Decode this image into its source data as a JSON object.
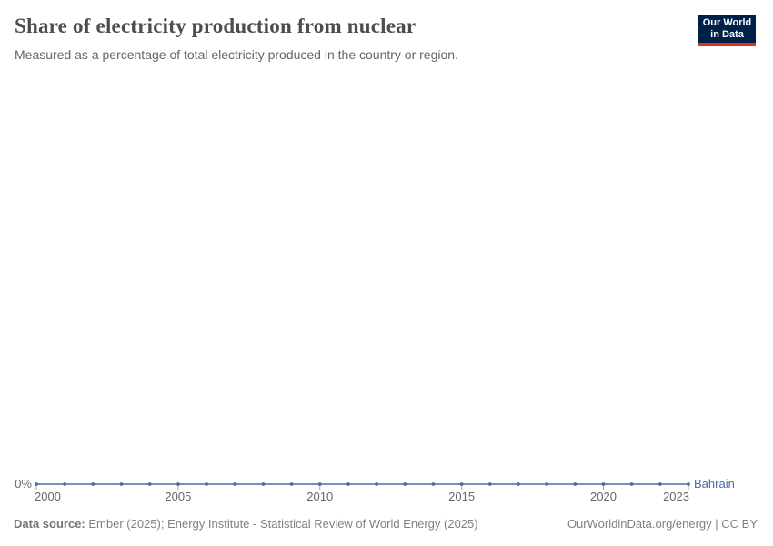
{
  "header": {
    "title": "Share of electricity production from nuclear",
    "subtitle": "Measured as a percentage of total electricity produced in the country or region.",
    "logo": {
      "line1": "Our World",
      "line2": "in Data",
      "bg_color": "#002147",
      "accent_color": "#E0301E"
    }
  },
  "chart_data": {
    "type": "line",
    "title": "Share of electricity production from nuclear",
    "xlabel": "",
    "ylabel": "",
    "xlim": [
      2000,
      2023
    ],
    "ylim": [
      0,
      0
    ],
    "grid": false,
    "x_ticks": [
      2000,
      2005,
      2010,
      2015,
      2020,
      2023
    ],
    "y_ticks": [
      "0%"
    ],
    "legend_position": "end-of-line-label",
    "series": [
      {
        "name": "Bahrain",
        "color": "#4C6CA8",
        "x": [
          2000,
          2001,
          2002,
          2003,
          2004,
          2005,
          2006,
          2007,
          2008,
          2009,
          2010,
          2011,
          2012,
          2013,
          2014,
          2015,
          2016,
          2017,
          2018,
          2019,
          2020,
          2021,
          2022,
          2023
        ],
        "values": [
          0,
          0,
          0,
          0,
          0,
          0,
          0,
          0,
          0,
          0,
          0,
          0,
          0,
          0,
          0,
          0,
          0,
          0,
          0,
          0,
          0,
          0,
          0,
          0
        ]
      }
    ]
  },
  "footer": {
    "data_source_label": "Data source:",
    "data_source_text": "Ember (2025); Energy Institute - Statistical Review of World Energy (2025)",
    "attribution": "OurWorldinData.org/energy | CC BY"
  },
  "colors": {
    "axis_text": "#666666",
    "title_text": "#4D4D4D",
    "footer_text": "#808080",
    "tick_mark": "#a5a5a5"
  }
}
